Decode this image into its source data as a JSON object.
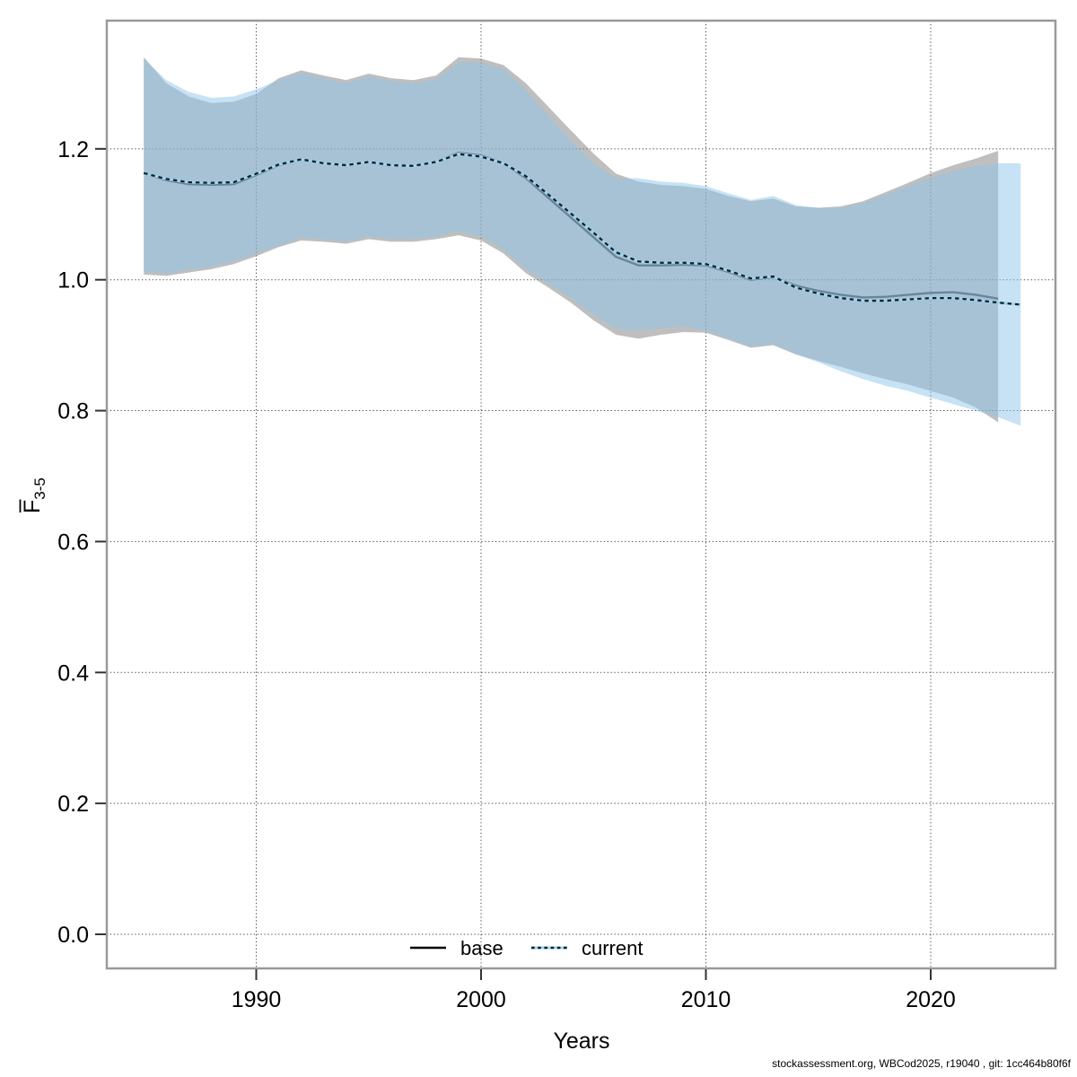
{
  "footer": {
    "text": "stockassessment.org, WBCod2025, r19040 , git: 1cc464b80f6f"
  },
  "chart_data": {
    "type": "line",
    "title": "",
    "xlabel": "Years",
    "ylabel": "F̄3-5",
    "ylabel_parts": {
      "letter": "F",
      "subscript": "3-5"
    },
    "xlim": [
      1983.4,
      2025.6
    ],
    "ylim": [
      -0.052,
      1.396
    ],
    "grid": "dotted",
    "x_ticks": [
      1990,
      2000,
      2010,
      2020
    ],
    "y_ticks": [
      0.0,
      0.2,
      0.4,
      0.6,
      0.8,
      1.0,
      1.2
    ],
    "legend_position": "bottom-center-inside",
    "legend": [
      {
        "label": "base",
        "style": "solid"
      },
      {
        "label": "current",
        "style": "dotted"
      }
    ],
    "colors": {
      "band_base_fill": "#808080",
      "band_base_opacity": 0.5,
      "band_current_fill": "#8fc5ea",
      "band_current_opacity": 0.5,
      "line_base": "#444444",
      "line_current_under": "#9fd4f0",
      "line_current_dash": "#10222e",
      "legend_base_line": "#000000",
      "grid_line": "#1a1a1a",
      "axis_box": "#999999",
      "tick": "#333333"
    },
    "series": [
      {
        "name": "base",
        "x": [
          1985,
          1986,
          1987,
          1988,
          1989,
          1990,
          1991,
          1992,
          1993,
          1994,
          1995,
          1996,
          1997,
          1998,
          1999,
          2000,
          2001,
          2002,
          2003,
          2004,
          2005,
          2006,
          2007,
          2008,
          2009,
          2010,
          2011,
          2012,
          2013,
          2014,
          2015,
          2016,
          2017,
          2018,
          2019,
          2020,
          2021,
          2022,
          2023
        ],
        "mean": [
          1.163,
          1.152,
          1.146,
          1.145,
          1.146,
          1.16,
          1.175,
          1.184,
          1.178,
          1.175,
          1.18,
          1.175,
          1.174,
          1.18,
          1.194,
          1.19,
          1.178,
          1.155,
          1.125,
          1.095,
          1.065,
          1.035,
          1.022,
          1.022,
          1.023,
          1.022,
          1.012,
          1.0,
          1.004,
          0.991,
          0.983,
          0.977,
          0.973,
          0.974,
          0.977,
          0.98,
          0.981,
          0.977,
          0.971
        ],
        "upper": [
          1.34,
          1.3,
          1.28,
          1.27,
          1.272,
          1.284,
          1.308,
          1.32,
          1.312,
          1.305,
          1.315,
          1.308,
          1.305,
          1.312,
          1.34,
          1.338,
          1.328,
          1.3,
          1.264,
          1.228,
          1.193,
          1.162,
          1.15,
          1.145,
          1.143,
          1.139,
          1.128,
          1.12,
          1.124,
          1.112,
          1.11,
          1.112,
          1.12,
          1.134,
          1.148,
          1.163,
          1.175,
          1.185,
          1.197
        ],
        "lower": [
          1.008,
          1.006,
          1.011,
          1.016,
          1.024,
          1.036,
          1.05,
          1.06,
          1.058,
          1.055,
          1.062,
          1.058,
          1.058,
          1.062,
          1.068,
          1.06,
          1.04,
          1.01,
          0.988,
          0.965,
          0.938,
          0.916,
          0.91,
          0.916,
          0.92,
          0.919,
          0.908,
          0.896,
          0.9,
          0.886,
          0.876,
          0.867,
          0.857,
          0.848,
          0.84,
          0.83,
          0.82,
          0.805,
          0.782
        ]
      },
      {
        "name": "current",
        "x": [
          1985,
          1986,
          1987,
          1988,
          1989,
          1990,
          1991,
          1992,
          1993,
          1994,
          1995,
          1996,
          1997,
          1998,
          1999,
          2000,
          2001,
          2002,
          2003,
          2004,
          2005,
          2006,
          2007,
          2008,
          2009,
          2010,
          2011,
          2012,
          2013,
          2014,
          2015,
          2016,
          2017,
          2018,
          2019,
          2020,
          2021,
          2022,
          2023,
          2024
        ],
        "mean": [
          1.163,
          1.154,
          1.149,
          1.148,
          1.149,
          1.162,
          1.176,
          1.184,
          1.178,
          1.175,
          1.18,
          1.175,
          1.174,
          1.18,
          1.192,
          1.188,
          1.178,
          1.158,
          1.13,
          1.101,
          1.072,
          1.042,
          1.028,
          1.026,
          1.026,
          1.024,
          1.014,
          1.002,
          1.005,
          0.988,
          0.979,
          0.972,
          0.968,
          0.968,
          0.97,
          0.972,
          0.972,
          0.969,
          0.965,
          0.962
        ],
        "upper": [
          1.338,
          1.305,
          1.287,
          1.278,
          1.28,
          1.291,
          1.305,
          1.316,
          1.308,
          1.3,
          1.31,
          1.304,
          1.3,
          1.306,
          1.332,
          1.332,
          1.322,
          1.29,
          1.25,
          1.212,
          1.178,
          1.155,
          1.155,
          1.15,
          1.148,
          1.143,
          1.132,
          1.122,
          1.128,
          1.114,
          1.11,
          1.11,
          1.117,
          1.13,
          1.143,
          1.156,
          1.166,
          1.174,
          1.178,
          1.178
        ],
        "lower": [
          1.012,
          1.01,
          1.015,
          1.02,
          1.028,
          1.04,
          1.052,
          1.064,
          1.062,
          1.058,
          1.066,
          1.062,
          1.062,
          1.066,
          1.074,
          1.066,
          1.046,
          1.016,
          0.994,
          0.972,
          0.946,
          0.926,
          0.922,
          0.926,
          0.929,
          0.922,
          0.91,
          0.898,
          0.902,
          0.886,
          0.874,
          0.86,
          0.848,
          0.838,
          0.83,
          0.82,
          0.81,
          0.8,
          0.79,
          0.777
        ]
      }
    ]
  }
}
